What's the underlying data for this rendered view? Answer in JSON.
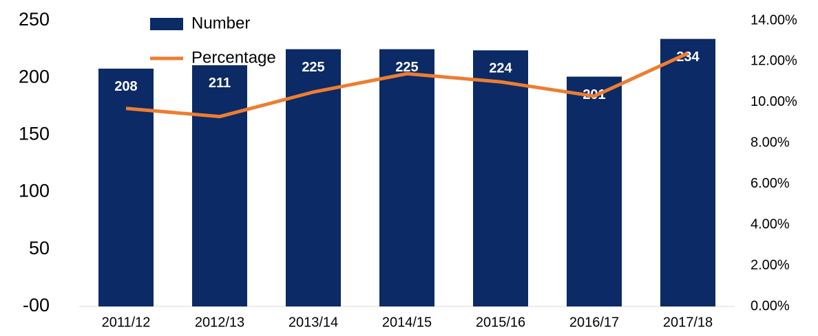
{
  "chart_data": {
    "type": "bar_line",
    "categories": [
      "2011/12",
      "2012/13",
      "2013/14",
      "2014/15",
      "2015/16",
      "2016/17",
      "2017/18"
    ],
    "series": [
      {
        "name": "Number",
        "type": "bar",
        "color": "#0b2a66",
        "values": [
          208,
          211,
          225,
          225,
          224,
          201,
          234
        ]
      },
      {
        "name": "Percentage",
        "type": "line",
        "axis": "y2",
        "color": "#ed7d31",
        "values": [
          9.7,
          9.3,
          10.5,
          11.4,
          11.0,
          10.3,
          12.4
        ]
      }
    ],
    "ylim": [
      0,
      250
    ],
    "yticks": [
      {
        "value": 0,
        "label": "-00"
      },
      50,
      100,
      150,
      200,
      250
    ],
    "y2lim": [
      0,
      14
    ],
    "y2ticks": [
      {
        "value": 0,
        "label": "0.00%"
      },
      {
        "value": 2,
        "label": "2.00%"
      },
      {
        "value": 4,
        "label": "4.00%"
      },
      {
        "value": 6,
        "label": "6.00%"
      },
      {
        "value": 8,
        "label": "8.00%"
      },
      {
        "value": 10,
        "label": "10.00%"
      },
      {
        "value": 12,
        "label": "12.00%"
      },
      {
        "value": 14,
        "label": "14.00%"
      }
    ],
    "legend": "top-left"
  }
}
